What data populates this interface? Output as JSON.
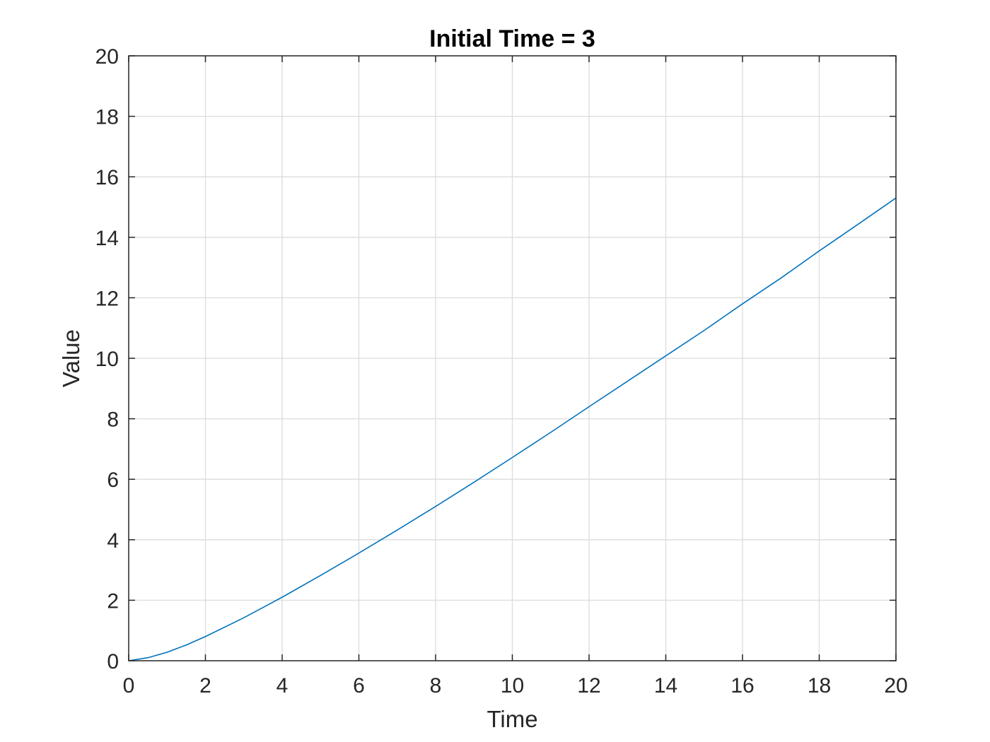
{
  "chart_data": {
    "type": "line",
    "title": "Initial Time = 3",
    "xlabel": "Time",
    "ylabel": "Value",
    "xlim": [
      0,
      20
    ],
    "ylim": [
      0,
      20
    ],
    "xticks": [
      0,
      2,
      4,
      6,
      8,
      10,
      12,
      14,
      16,
      18,
      20
    ],
    "yticks": [
      0,
      2,
      4,
      6,
      8,
      10,
      12,
      14,
      16,
      18,
      20
    ],
    "grid": true,
    "series": [
      {
        "color": "#0072bd",
        "x": [
          0,
          0.5,
          1,
          1.5,
          2,
          3,
          4,
          5,
          6,
          7,
          8,
          9,
          10,
          11,
          12,
          13,
          14,
          15,
          16,
          17,
          18,
          19,
          20
        ],
        "y": [
          0,
          0.1,
          0.28,
          0.52,
          0.8,
          1.42,
          2.1,
          2.82,
          3.56,
          4.32,
          5.1,
          5.9,
          6.72,
          7.55,
          8.4,
          9.24,
          10.08,
          10.92,
          11.8,
          12.65,
          13.55,
          14.42,
          15.3
        ]
      }
    ]
  }
}
